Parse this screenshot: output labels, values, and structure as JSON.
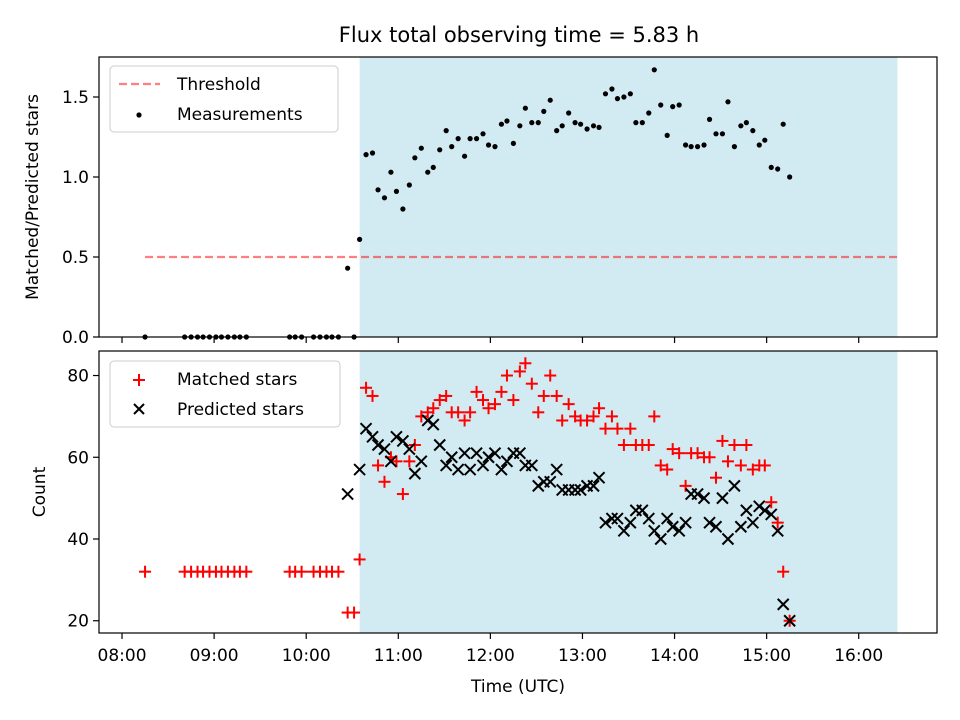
{
  "figure_title": "Flux total observing time = 5.83 h",
  "colors": {
    "shade": "#add8e6",
    "threshold": "#ff0000",
    "measurement": "#000000",
    "matched": "#ff0000",
    "predicted": "#000000"
  },
  "chart_data": [
    {
      "type": "scatter",
      "title": "Flux total observing time = 5.83 h",
      "xlabel": "",
      "ylabel": "Matched/Predicted stars",
      "xlim": [
        7.75,
        16.85
      ],
      "ylim": [
        0,
        1.75
      ],
      "yticks": [
        0.0,
        0.5,
        1.0,
        1.5
      ],
      "ytick_labels": [
        "0.0",
        "0.5",
        "1.0",
        "1.5"
      ],
      "shaded_span": [
        10.58,
        16.42
      ],
      "threshold": {
        "label": "Threshold",
        "value": 0.5,
        "x_range": [
          8.25,
          16.42
        ]
      },
      "legend": {
        "location": "upper-left",
        "entries": [
          "Threshold",
          "Measurements"
        ]
      },
      "series": [
        {
          "name": "Measurements",
          "points": [
            [
              8.25,
              0
            ],
            [
              8.68,
              0
            ],
            [
              8.75,
              0
            ],
            [
              8.82,
              0
            ],
            [
              8.88,
              0
            ],
            [
              8.95,
              0
            ],
            [
              9.02,
              0
            ],
            [
              9.08,
              0
            ],
            [
              9.15,
              0
            ],
            [
              9.22,
              0
            ],
            [
              9.28,
              0
            ],
            [
              9.35,
              0
            ],
            [
              9.82,
              0
            ],
            [
              9.88,
              0
            ],
            [
              9.95,
              0
            ],
            [
              10.08,
              0
            ],
            [
              10.15,
              0
            ],
            [
              10.22,
              0
            ],
            [
              10.28,
              0
            ],
            [
              10.35,
              0
            ],
            [
              10.45,
              0.43
            ],
            [
              10.52,
              0
            ],
            [
              10.58,
              0.61
            ],
            [
              10.65,
              1.14
            ],
            [
              10.72,
              1.15
            ],
            [
              10.78,
              0.92
            ],
            [
              10.85,
              0.87
            ],
            [
              10.92,
              1.03
            ],
            [
              10.98,
              0.91
            ],
            [
              11.05,
              0.8
            ],
            [
              11.12,
              0.95
            ],
            [
              11.18,
              1.12
            ],
            [
              11.25,
              1.18
            ],
            [
              11.32,
              1.03
            ],
            [
              11.38,
              1.06
            ],
            [
              11.45,
              1.17
            ],
            [
              11.52,
              1.29
            ],
            [
              11.58,
              1.19
            ],
            [
              11.65,
              1.24
            ],
            [
              11.72,
              1.13
            ],
            [
              11.78,
              1.24
            ],
            [
              11.85,
              1.24
            ],
            [
              11.92,
              1.27
            ],
            [
              11.98,
              1.2
            ],
            [
              12.05,
              1.19
            ],
            [
              12.12,
              1.33
            ],
            [
              12.18,
              1.35
            ],
            [
              12.25,
              1.21
            ],
            [
              12.32,
              1.32
            ],
            [
              12.38,
              1.43
            ],
            [
              12.45,
              1.34
            ],
            [
              12.52,
              1.34
            ],
            [
              12.58,
              1.41
            ],
            [
              12.65,
              1.48
            ],
            [
              12.72,
              1.29
            ],
            [
              12.78,
              1.32
            ],
            [
              12.85,
              1.4
            ],
            [
              12.92,
              1.34
            ],
            [
              12.98,
              1.33
            ],
            [
              13.05,
              1.3
            ],
            [
              13.12,
              1.32
            ],
            [
              13.18,
              1.31
            ],
            [
              13.25,
              1.52
            ],
            [
              13.32,
              1.55
            ],
            [
              13.38,
              1.49
            ],
            [
              13.45,
              1.5
            ],
            [
              13.52,
              1.52
            ],
            [
              13.58,
              1.34
            ],
            [
              13.65,
              1.34
            ],
            [
              13.72,
              1.4
            ],
            [
              13.78,
              1.67
            ],
            [
              13.85,
              1.45
            ],
            [
              13.92,
              1.26
            ],
            [
              13.98,
              1.44
            ],
            [
              14.05,
              1.45
            ],
            [
              14.12,
              1.2
            ],
            [
              14.18,
              1.19
            ],
            [
              14.25,
              1.19
            ],
            [
              14.32,
              1.2
            ],
            [
              14.38,
              1.36
            ],
            [
              14.45,
              1.27
            ],
            [
              14.52,
              1.27
            ],
            [
              14.58,
              1.47
            ],
            [
              14.65,
              1.19
            ],
            [
              14.72,
              1.32
            ],
            [
              14.78,
              1.34
            ],
            [
              14.85,
              1.29
            ],
            [
              14.92,
              1.2
            ],
            [
              14.98,
              1.23
            ],
            [
              15.05,
              1.06
            ],
            [
              15.12,
              1.05
            ],
            [
              15.18,
              1.33
            ],
            [
              15.25,
              1.0
            ]
          ]
        }
      ]
    },
    {
      "type": "scatter",
      "title": "",
      "xlabel": "Time (UTC)",
      "ylabel": "Count",
      "xlim": [
        7.75,
        16.85
      ],
      "ylim": [
        17,
        86
      ],
      "yticks": [
        20,
        40,
        60,
        80
      ],
      "ytick_labels": [
        "20",
        "40",
        "60",
        "80"
      ],
      "xticks": [
        8,
        9,
        10,
        11,
        12,
        13,
        14,
        15,
        16
      ],
      "xtick_labels": [
        "08:00",
        "09:00",
        "10:00",
        "11:00",
        "12:00",
        "13:00",
        "14:00",
        "15:00",
        "16:00"
      ],
      "shaded_span": [
        10.58,
        16.42
      ],
      "legend": {
        "location": "upper-left",
        "entries": [
          "Matched stars",
          "Predicted stars"
        ]
      },
      "series": [
        {
          "name": "Matched stars",
          "marker": "plus",
          "points": [
            [
              8.25,
              32
            ],
            [
              8.68,
              32
            ],
            [
              8.75,
              32
            ],
            [
              8.82,
              32
            ],
            [
              8.88,
              32
            ],
            [
              8.95,
              32
            ],
            [
              9.02,
              32
            ],
            [
              9.08,
              32
            ],
            [
              9.15,
              32
            ],
            [
              9.22,
              32
            ],
            [
              9.28,
              32
            ],
            [
              9.35,
              32
            ],
            [
              9.82,
              32
            ],
            [
              9.88,
              32
            ],
            [
              9.95,
              32
            ],
            [
              10.08,
              32
            ],
            [
              10.15,
              32
            ],
            [
              10.22,
              32
            ],
            [
              10.28,
              32
            ],
            [
              10.35,
              32
            ],
            [
              10.45,
              22
            ],
            [
              10.52,
              22
            ],
            [
              10.58,
              35
            ],
            [
              10.65,
              77
            ],
            [
              10.72,
              75
            ],
            [
              10.78,
              58
            ],
            [
              10.85,
              54
            ],
            [
              10.92,
              60
            ],
            [
              10.98,
              59
            ],
            [
              11.05,
              51
            ],
            [
              11.12,
              59
            ],
            [
              11.18,
              63
            ],
            [
              11.25,
              70
            ],
            [
              11.32,
              71
            ],
            [
              11.38,
              72
            ],
            [
              11.45,
              74
            ],
            [
              11.52,
              75
            ],
            [
              11.58,
              71
            ],
            [
              11.65,
              71
            ],
            [
              11.72,
              69
            ],
            [
              11.78,
              71
            ],
            [
              11.85,
              76
            ],
            [
              11.92,
              74
            ],
            [
              11.98,
              72
            ],
            [
              12.05,
              73
            ],
            [
              12.12,
              76
            ],
            [
              12.18,
              80
            ],
            [
              12.25,
              74
            ],
            [
              12.32,
              81
            ],
            [
              12.38,
              83
            ],
            [
              12.45,
              78
            ],
            [
              12.52,
              71
            ],
            [
              12.58,
              75
            ],
            [
              12.65,
              80
            ],
            [
              12.72,
              75
            ],
            [
              12.78,
              69
            ],
            [
              12.85,
              73
            ],
            [
              12.92,
              70
            ],
            [
              12.98,
              69
            ],
            [
              13.05,
              69
            ],
            [
              13.12,
              70
            ],
            [
              13.18,
              72
            ],
            [
              13.25,
              67
            ],
            [
              13.32,
              70
            ],
            [
              13.38,
              67
            ],
            [
              13.45,
              63
            ],
            [
              13.52,
              67
            ],
            [
              13.58,
              63
            ],
            [
              13.65,
              63
            ],
            [
              13.72,
              63
            ],
            [
              13.78,
              70
            ],
            [
              13.85,
              58
            ],
            [
              13.92,
              57
            ],
            [
              13.98,
              62
            ],
            [
              14.05,
              61
            ],
            [
              14.12,
              53
            ],
            [
              14.18,
              61
            ],
            [
              14.25,
              61
            ],
            [
              14.32,
              60
            ],
            [
              14.38,
              60
            ],
            [
              14.45,
              55
            ],
            [
              14.52,
              64
            ],
            [
              14.58,
              59
            ],
            [
              14.65,
              63
            ],
            [
              14.72,
              58
            ],
            [
              14.78,
              63
            ],
            [
              14.85,
              57
            ],
            [
              14.92,
              58
            ],
            [
              14.98,
              58
            ],
            [
              15.05,
              49
            ],
            [
              15.12,
              44
            ],
            [
              15.18,
              32
            ],
            [
              15.25,
              20
            ]
          ]
        },
        {
          "name": "Predicted stars",
          "marker": "x",
          "points": [
            [
              10.45,
              51
            ],
            [
              10.58,
              57
            ],
            [
              10.65,
              67
            ],
            [
              10.72,
              65
            ],
            [
              10.78,
              63
            ],
            [
              10.85,
              62
            ],
            [
              10.92,
              59
            ],
            [
              10.98,
              65
            ],
            [
              11.05,
              64
            ],
            [
              11.12,
              62
            ],
            [
              11.18,
              56
            ],
            [
              11.25,
              59
            ],
            [
              11.32,
              69
            ],
            [
              11.38,
              68
            ],
            [
              11.45,
              63
            ],
            [
              11.52,
              58
            ],
            [
              11.58,
              60
            ],
            [
              11.65,
              57
            ],
            [
              11.72,
              61
            ],
            [
              11.78,
              57
            ],
            [
              11.85,
              61
            ],
            [
              11.92,
              58
            ],
            [
              11.98,
              60
            ],
            [
              12.05,
              61
            ],
            [
              12.12,
              57
            ],
            [
              12.18,
              59
            ],
            [
              12.25,
              61
            ],
            [
              12.32,
              61
            ],
            [
              12.38,
              58
            ],
            [
              12.45,
              58
            ],
            [
              12.52,
              53
            ],
            [
              12.58,
              54
            ],
            [
              12.65,
              54
            ],
            [
              12.72,
              57
            ],
            [
              12.78,
              52
            ],
            [
              12.85,
              52
            ],
            [
              12.92,
              52
            ],
            [
              12.98,
              52
            ],
            [
              13.05,
              53
            ],
            [
              13.12,
              53
            ],
            [
              13.18,
              55
            ],
            [
              13.25,
              44
            ],
            [
              13.32,
              45
            ],
            [
              13.38,
              45
            ],
            [
              13.45,
              42
            ],
            [
              13.52,
              44
            ],
            [
              13.58,
              47
            ],
            [
              13.65,
              47
            ],
            [
              13.72,
              45
            ],
            [
              13.78,
              42
            ],
            [
              13.85,
              40
            ],
            [
              13.92,
              45
            ],
            [
              13.98,
              43
            ],
            [
              14.05,
              42
            ],
            [
              14.12,
              44
            ],
            [
              14.18,
              51
            ],
            [
              14.25,
              51
            ],
            [
              14.32,
              50
            ],
            [
              14.38,
              44
            ],
            [
              14.45,
              43
            ],
            [
              14.52,
              50
            ],
            [
              14.58,
              40
            ],
            [
              14.65,
              53
            ],
            [
              14.72,
              43
            ],
            [
              14.78,
              47
            ],
            [
              14.85,
              44
            ],
            [
              14.92,
              48
            ],
            [
              14.98,
              47
            ],
            [
              15.05,
              46
            ],
            [
              15.12,
              42
            ],
            [
              15.18,
              24
            ],
            [
              15.25,
              20
            ]
          ]
        }
      ]
    }
  ]
}
